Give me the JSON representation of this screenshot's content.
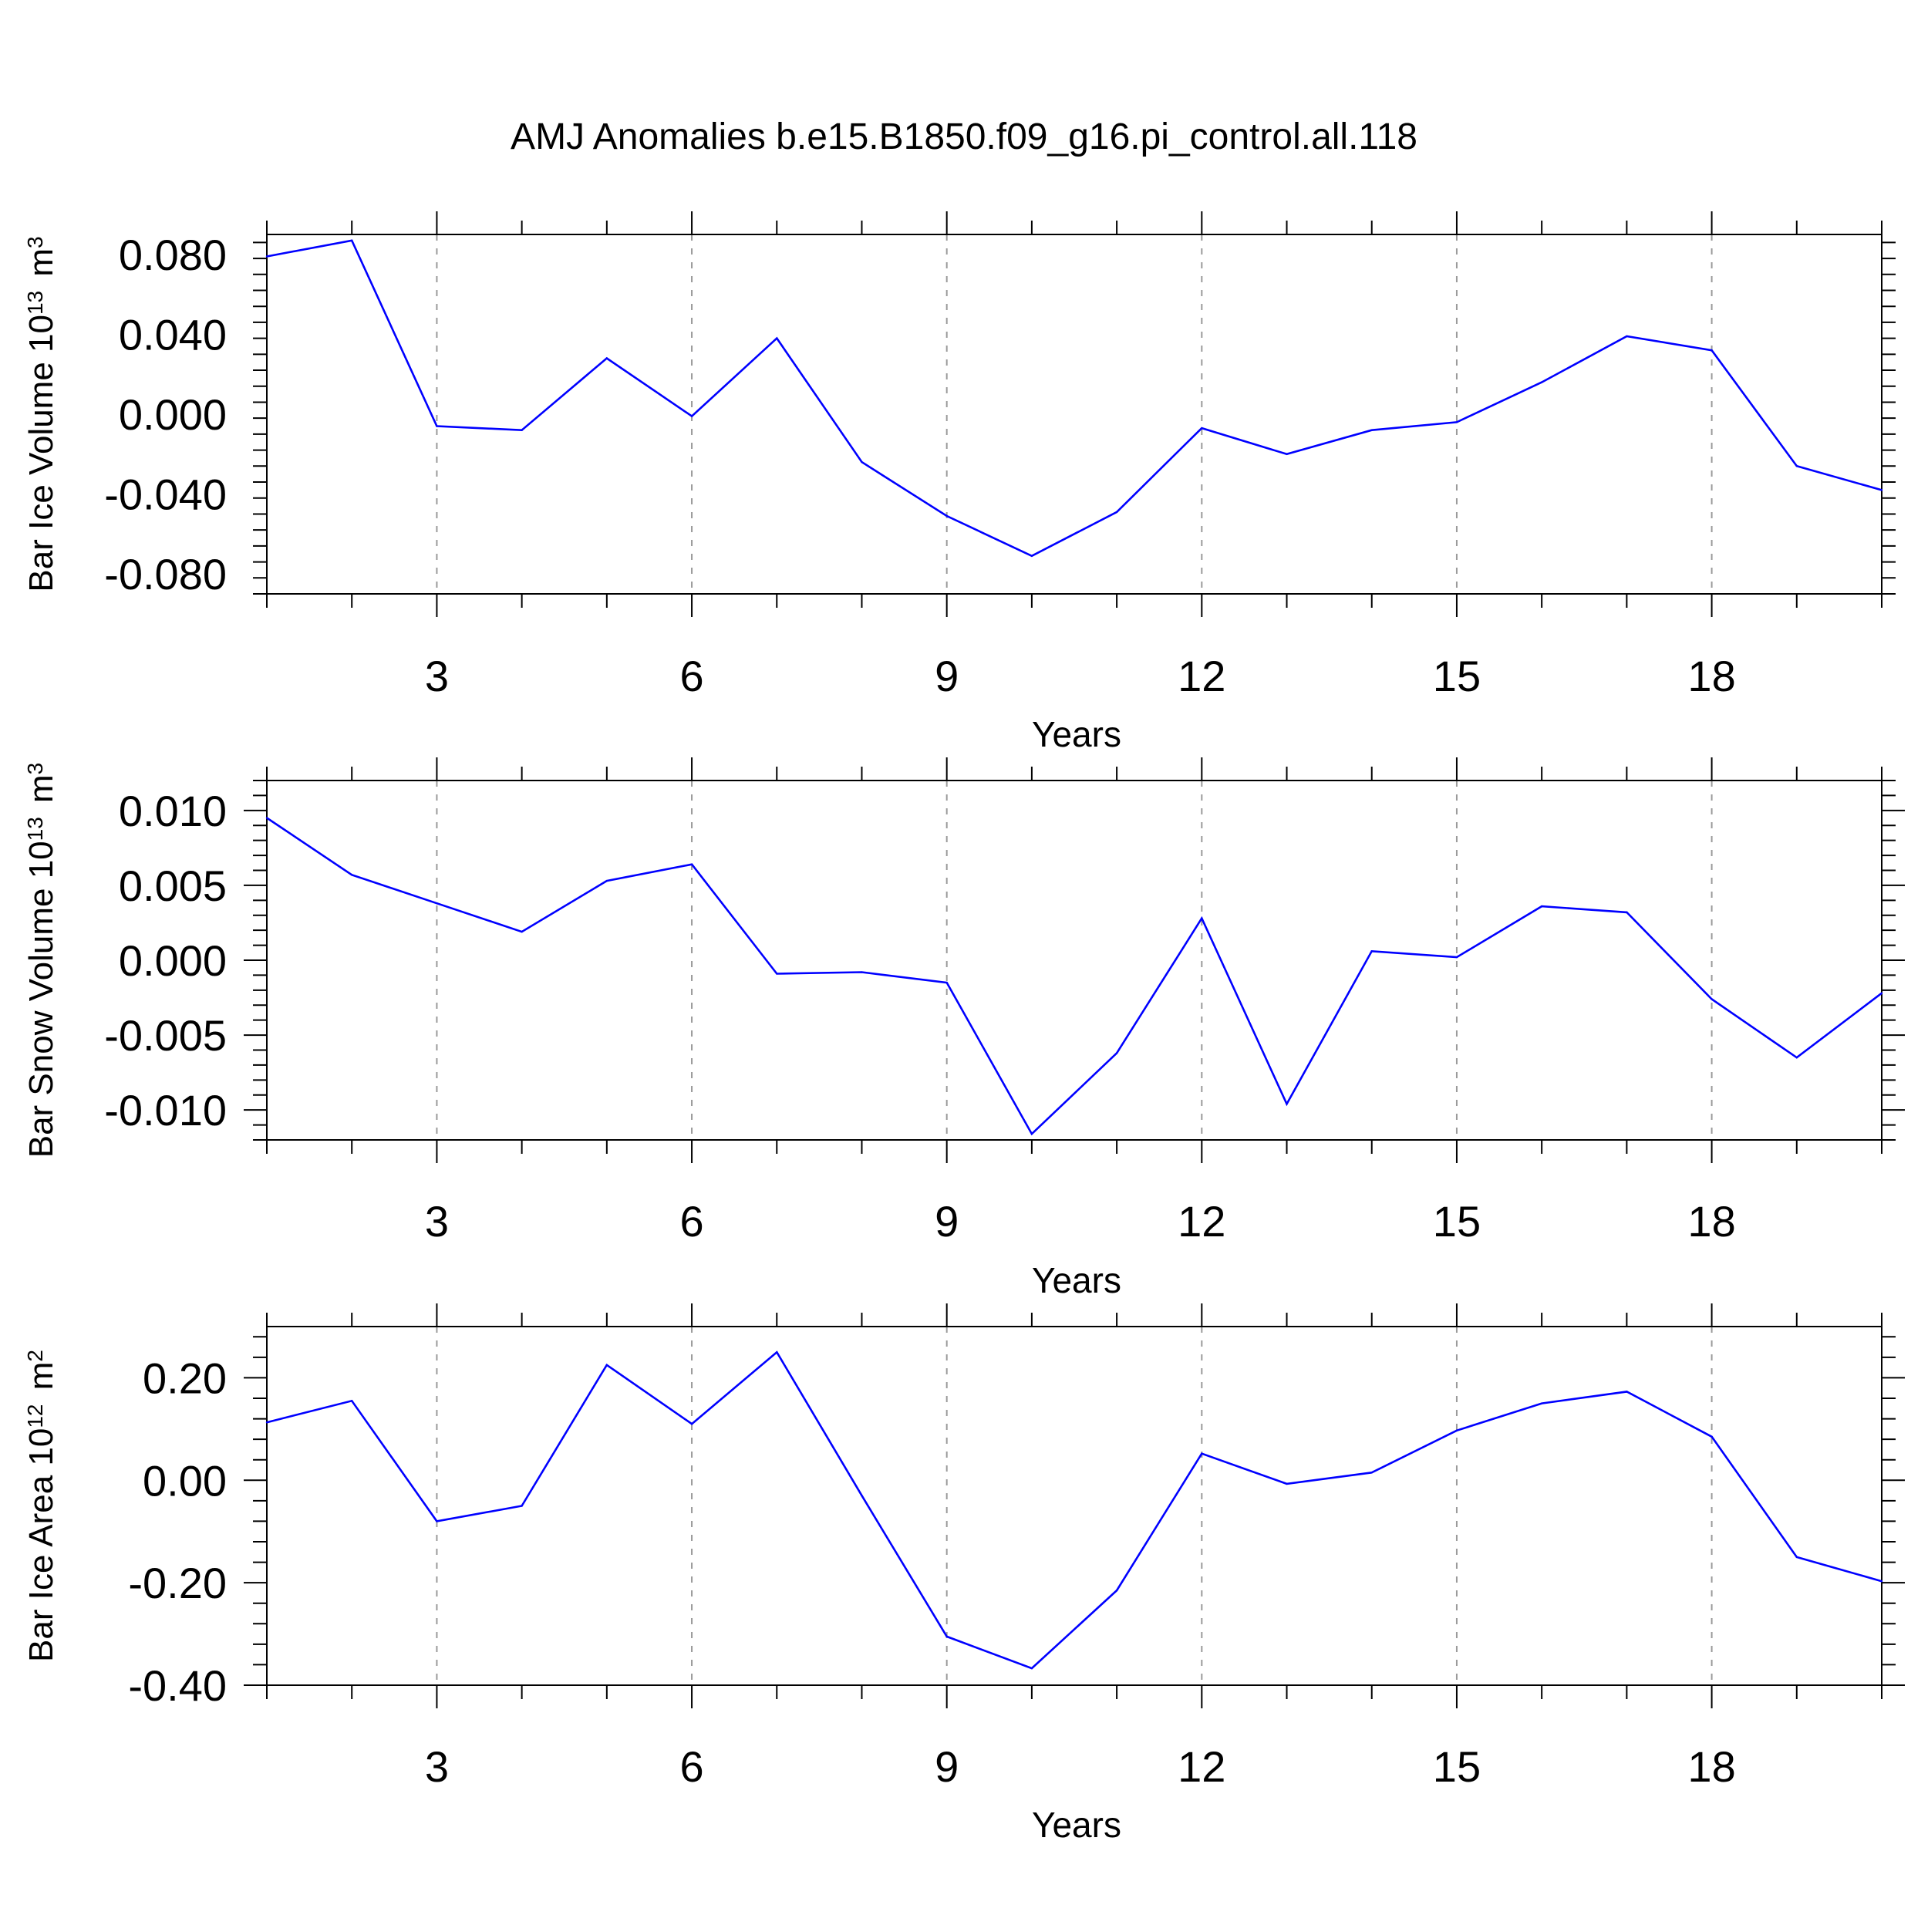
{
  "figure_title": "AMJ Anomalies b.e15.B1850.f09_g16.pi_control.all.118",
  "line_color": "#0000ff",
  "chart_data": [
    {
      "type": "line",
      "title": "",
      "xlabel": "Years",
      "ylabel": "Bar Ice Volume 10",
      "ylabel_exponent": "13",
      "ylabel_unit": "m",
      "ylabel_unit_exponent": "3",
      "xlim": [
        1,
        20
      ],
      "ylim": [
        -0.09,
        0.09
      ],
      "xticks": [
        3,
        6,
        9,
        12,
        15,
        18
      ],
      "yticks": [
        0.08,
        0.04,
        0.0,
        -0.04,
        -0.08
      ],
      "ytick_labels": [
        "0.080",
        "0.040",
        "0.000",
        "-0.040",
        "-0.080"
      ],
      "grid": "vertical dashed at major x ticks",
      "x": [
        1,
        2,
        3,
        4,
        5,
        6,
        7,
        8,
        9,
        10,
        11,
        12,
        13,
        14,
        15,
        16,
        17,
        18,
        19,
        20
      ],
      "series": [
        {
          "name": "Bar Ice Volume",
          "values": [
            0.079,
            0.087,
            -0.006,
            -0.008,
            0.028,
            -0.001,
            0.038,
            -0.024,
            -0.051,
            -0.071,
            -0.049,
            -0.007,
            -0.02,
            -0.008,
            -0.004,
            0.016,
            0.039,
            0.032,
            -0.026,
            -0.038
          ]
        }
      ]
    },
    {
      "type": "line",
      "title": "",
      "xlabel": "Years",
      "ylabel": "Bar Snow Volume 10",
      "ylabel_exponent": "13",
      "ylabel_unit": "m",
      "ylabel_unit_exponent": "3",
      "xlim": [
        1,
        20
      ],
      "ylim": [
        -0.012,
        0.012
      ],
      "xticks": [
        3,
        6,
        9,
        12,
        15,
        18
      ],
      "yticks": [
        0.01,
        0.005,
        0.0,
        -0.005,
        -0.01
      ],
      "ytick_labels": [
        "0.010",
        "0.005",
        "0.000",
        "-0.005",
        "-0.010"
      ],
      "grid": "vertical dashed at major x ticks",
      "x": [
        1,
        2,
        3,
        4,
        5,
        6,
        7,
        8,
        9,
        10,
        11,
        12,
        13,
        14,
        15,
        16,
        17,
        18,
        19,
        20
      ],
      "series": [
        {
          "name": "Bar Snow Volume",
          "values": [
            0.0095,
            0.0057,
            0.0038,
            0.0019,
            0.0053,
            0.0064,
            -0.0009,
            -0.0008,
            -0.0015,
            -0.0116,
            -0.0062,
            0.0028,
            -0.0096,
            0.0006,
            0.0002,
            0.0036,
            0.0032,
            -0.0026,
            -0.0065,
            -0.0022
          ]
        }
      ]
    },
    {
      "type": "line",
      "title": "",
      "xlabel": "Years",
      "ylabel": "Bar Ice Area 10",
      "ylabel_exponent": "12",
      "ylabel_unit": "m",
      "ylabel_unit_exponent": "2",
      "xlim": [
        1,
        20
      ],
      "ylim": [
        -0.4,
        0.3
      ],
      "xticks": [
        3,
        6,
        9,
        12,
        15,
        18
      ],
      "yticks": [
        0.2,
        0.0,
        -0.2,
        -0.4
      ],
      "ytick_labels": [
        "0.20",
        "0.00",
        "-0.20",
        "-0.40"
      ],
      "grid": "vertical dashed at major x ticks",
      "x": [
        1,
        2,
        3,
        4,
        5,
        6,
        7,
        8,
        9,
        10,
        11,
        12,
        13,
        14,
        15,
        16,
        17,
        18,
        19,
        20
      ],
      "series": [
        {
          "name": "Bar Ice Area",
          "values": [
            0.113,
            0.155,
            -0.08,
            -0.05,
            0.225,
            0.11,
            0.25,
            -0.03,
            -0.305,
            -0.367,
            -0.215,
            0.052,
            -0.007,
            0.015,
            0.097,
            0.15,
            0.173,
            0.085,
            -0.15,
            -0.197
          ]
        }
      ]
    }
  ]
}
